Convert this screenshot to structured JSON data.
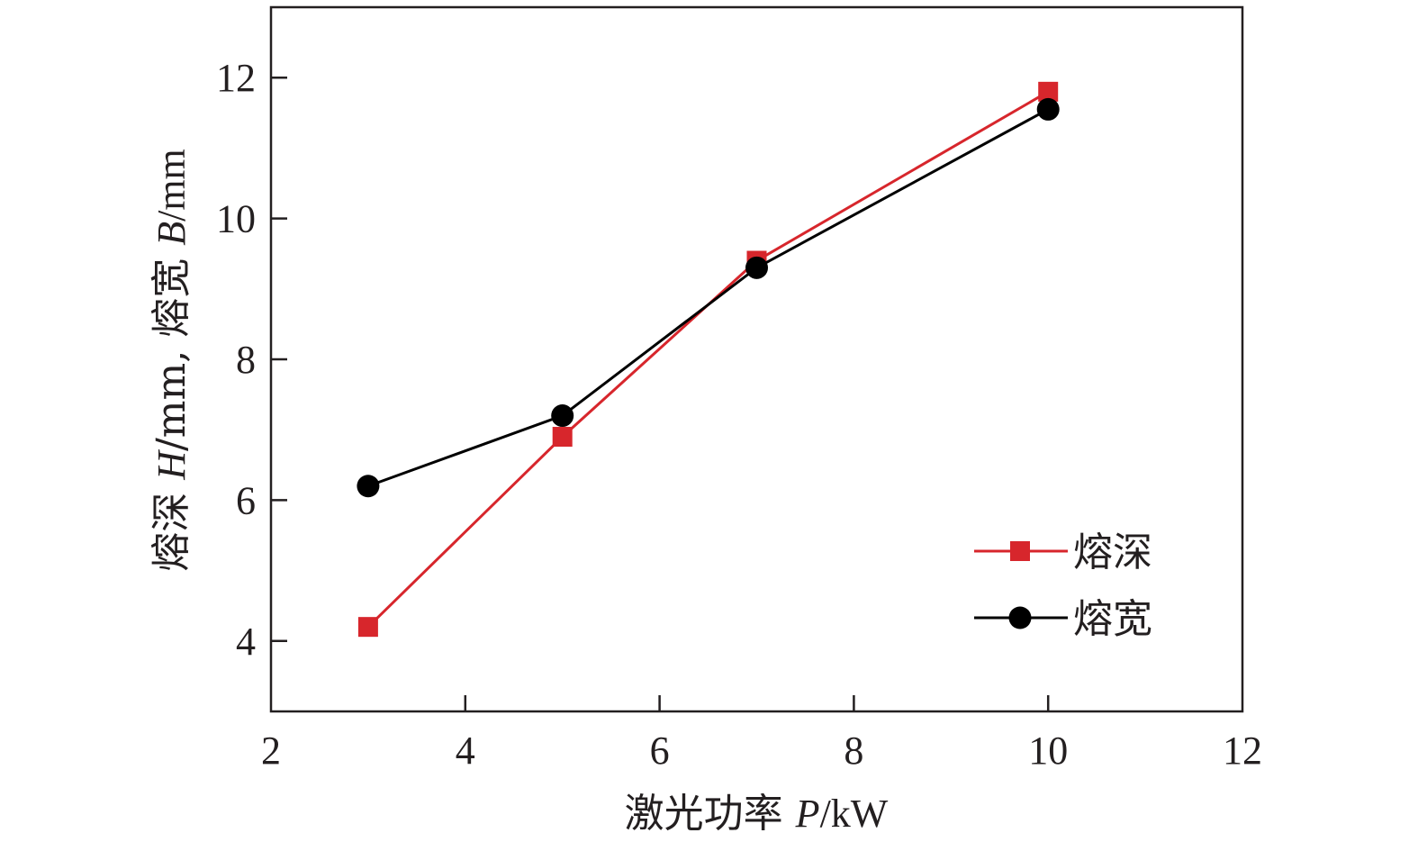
{
  "chart_data": {
    "type": "line",
    "x": [
      3,
      5,
      7,
      10
    ],
    "series": [
      {
        "name": "熔深",
        "values": [
          4.2,
          6.9,
          9.4,
          11.8
        ],
        "color": "#d7262c",
        "marker": "square"
      },
      {
        "name": "熔宽",
        "values": [
          6.2,
          7.2,
          9.3,
          11.55
        ],
        "color": "#000000",
        "marker": "circle"
      }
    ],
    "xlim": [
      2,
      12
    ],
    "ylim": [
      3,
      13
    ],
    "xticks": [
      2,
      4,
      6,
      8,
      10,
      12
    ],
    "yticks": [
      4,
      6,
      8,
      10,
      12
    ],
    "xticklabels": [
      "2",
      "4",
      "6",
      "8",
      "10",
      "12"
    ],
    "yticklabels": [
      "4",
      "6",
      "8",
      "10",
      "12"
    ],
    "xlabel": {
      "main": "激光功率 ",
      "var": "P",
      "unit": "/kW"
    },
    "ylabel": {
      "part1": "熔深 ",
      "var1": "H",
      "unit1": "/mm, 熔宽 ",
      "var2": "B",
      "unit2": "/mm"
    },
    "legend_position": "lower-right",
    "grid": false
  }
}
